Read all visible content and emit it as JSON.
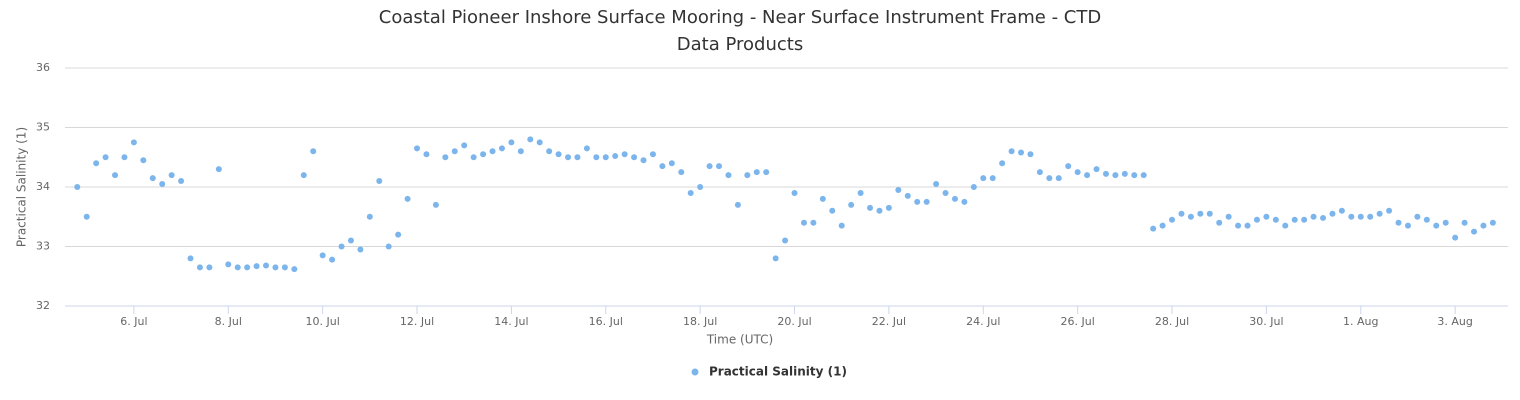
{
  "chart_data": {
    "type": "scatter",
    "title": "Coastal Pioneer Inshore Surface Mooring - Near Surface Instrument Frame - CTD",
    "subtitle": "Data Products",
    "x_label": "Time (UTC)",
    "y_label": "Practical Salinity (1)",
    "xlim": [
      4.54,
      35.12
    ],
    "ylim": [
      32,
      36
    ],
    "yticks": [
      32,
      33,
      34,
      35,
      36
    ],
    "xticks": [
      {
        "value": 6,
        "label": "6. Jul"
      },
      {
        "value": 8,
        "label": "8. Jul"
      },
      {
        "value": 10,
        "label": "10. Jul"
      },
      {
        "value": 12,
        "label": "12. Jul"
      },
      {
        "value": 14,
        "label": "14. Jul"
      },
      {
        "value": 16,
        "label": "16. Jul"
      },
      {
        "value": 18,
        "label": "18. Jul"
      },
      {
        "value": 20,
        "label": "20. Jul"
      },
      {
        "value": 22,
        "label": "22. Jul"
      },
      {
        "value": 24,
        "label": "24. Jul"
      },
      {
        "value": 26,
        "label": "26. Jul"
      },
      {
        "value": 28,
        "label": "28. Jul"
      },
      {
        "value": 30,
        "label": "30. Jul"
      },
      {
        "value": 32,
        "label": "1. Aug"
      },
      {
        "value": 34,
        "label": "3. Aug"
      }
    ],
    "grid": true,
    "legend": "bottom",
    "series": [
      {
        "name": "Practical Salinity (1)",
        "color": "#7cb5ec",
        "x": [
          4.8,
          5.0,
          5.2,
          5.4,
          5.6,
          5.8,
          6.0,
          6.2,
          6.4,
          6.6,
          6.8,
          7.0,
          7.2,
          7.4,
          7.6,
          7.8,
          8.0,
          8.2,
          8.4,
          8.6,
          8.8,
          9.0,
          9.2,
          9.4,
          9.6,
          9.8,
          10.0,
          10.2,
          10.4,
          10.6,
          10.8,
          11.0,
          11.2,
          11.4,
          11.6,
          11.8,
          12.0,
          12.2,
          12.4,
          12.6,
          12.8,
          13.0,
          13.2,
          13.4,
          13.6,
          13.8,
          14.0,
          14.2,
          14.4,
          14.6,
          14.8,
          15.0,
          15.2,
          15.4,
          15.6,
          15.8,
          16.0,
          16.2,
          16.4,
          16.6,
          16.8,
          17.0,
          17.2,
          17.4,
          17.6,
          17.8,
          18.0,
          18.2,
          18.4,
          18.6,
          18.8,
          19.0,
          19.2,
          19.4,
          19.6,
          19.8,
          20.0,
          20.2,
          20.4,
          20.6,
          20.8,
          21.0,
          21.2,
          21.4,
          21.6,
          21.8,
          22.0,
          22.2,
          22.4,
          22.6,
          22.8,
          23.0,
          23.2,
          23.4,
          23.6,
          23.8,
          24.0,
          24.2,
          24.4,
          24.6,
          24.8,
          25.0,
          25.2,
          25.4,
          25.6,
          25.8,
          26.0,
          26.2,
          26.4,
          26.6,
          26.8,
          27.0,
          27.2,
          27.4,
          27.6,
          27.8,
          28.0,
          28.2,
          28.4,
          28.6,
          28.8,
          29.0,
          29.2,
          29.4,
          29.6,
          29.8,
          30.0,
          30.2,
          30.4,
          30.6,
          30.8,
          31.0,
          31.2,
          31.4,
          31.6,
          31.8,
          32.0,
          32.2,
          32.4,
          32.6,
          32.8,
          33.0,
          33.2,
          33.4,
          33.6,
          33.8,
          34.0,
          34.2,
          34.4,
          34.6,
          34.8
        ],
        "values": [
          34.0,
          33.5,
          34.4,
          34.5,
          34.2,
          34.5,
          34.75,
          34.45,
          34.15,
          34.05,
          34.2,
          34.1,
          32.8,
          32.65,
          32.65,
          34.3,
          32.7,
          32.65,
          32.65,
          32.67,
          32.68,
          32.65,
          32.65,
          32.62,
          34.2,
          34.6,
          32.85,
          32.78,
          33.0,
          33.1,
          32.95,
          33.5,
          34.1,
          33.0,
          33.2,
          33.8,
          34.65,
          34.55,
          33.7,
          34.5,
          34.6,
          34.7,
          34.5,
          34.55,
          34.6,
          34.65,
          34.75,
          34.6,
          34.8,
          34.75,
          34.6,
          34.55,
          34.5,
          34.5,
          34.65,
          34.5,
          34.5,
          34.52,
          34.55,
          34.5,
          34.45,
          34.55,
          34.35,
          34.4,
          34.25,
          33.9,
          34.0,
          34.35,
          34.35,
          34.2,
          33.7,
          34.2,
          34.25,
          34.25,
          32.8,
          33.1,
          33.9,
          33.4,
          33.4,
          33.8,
          33.6,
          33.35,
          33.7,
          33.9,
          33.65,
          33.6,
          33.65,
          33.95,
          33.85,
          33.75,
          33.75,
          34.05,
          33.9,
          33.8,
          33.75,
          34.0,
          34.15,
          34.15,
          34.4,
          34.6,
          34.58,
          34.55,
          34.25,
          34.15,
          34.15,
          34.35,
          34.25,
          34.2,
          34.3,
          34.22,
          34.2,
          34.22,
          34.2,
          34.2,
          33.3,
          33.35,
          33.45,
          33.55,
          33.5,
          33.55,
          33.55,
          33.4,
          33.5,
          33.35,
          33.35,
          33.45,
          33.5,
          33.45,
          33.35,
          33.45,
          33.45,
          33.5,
          33.48,
          33.55,
          33.6,
          33.5,
          33.5,
          33.5,
          33.55,
          33.6,
          33.4,
          33.35,
          33.5,
          33.45,
          33.35,
          33.4,
          33.15,
          33.4,
          33.25,
          33.35,
          33.4
        ]
      }
    ]
  }
}
